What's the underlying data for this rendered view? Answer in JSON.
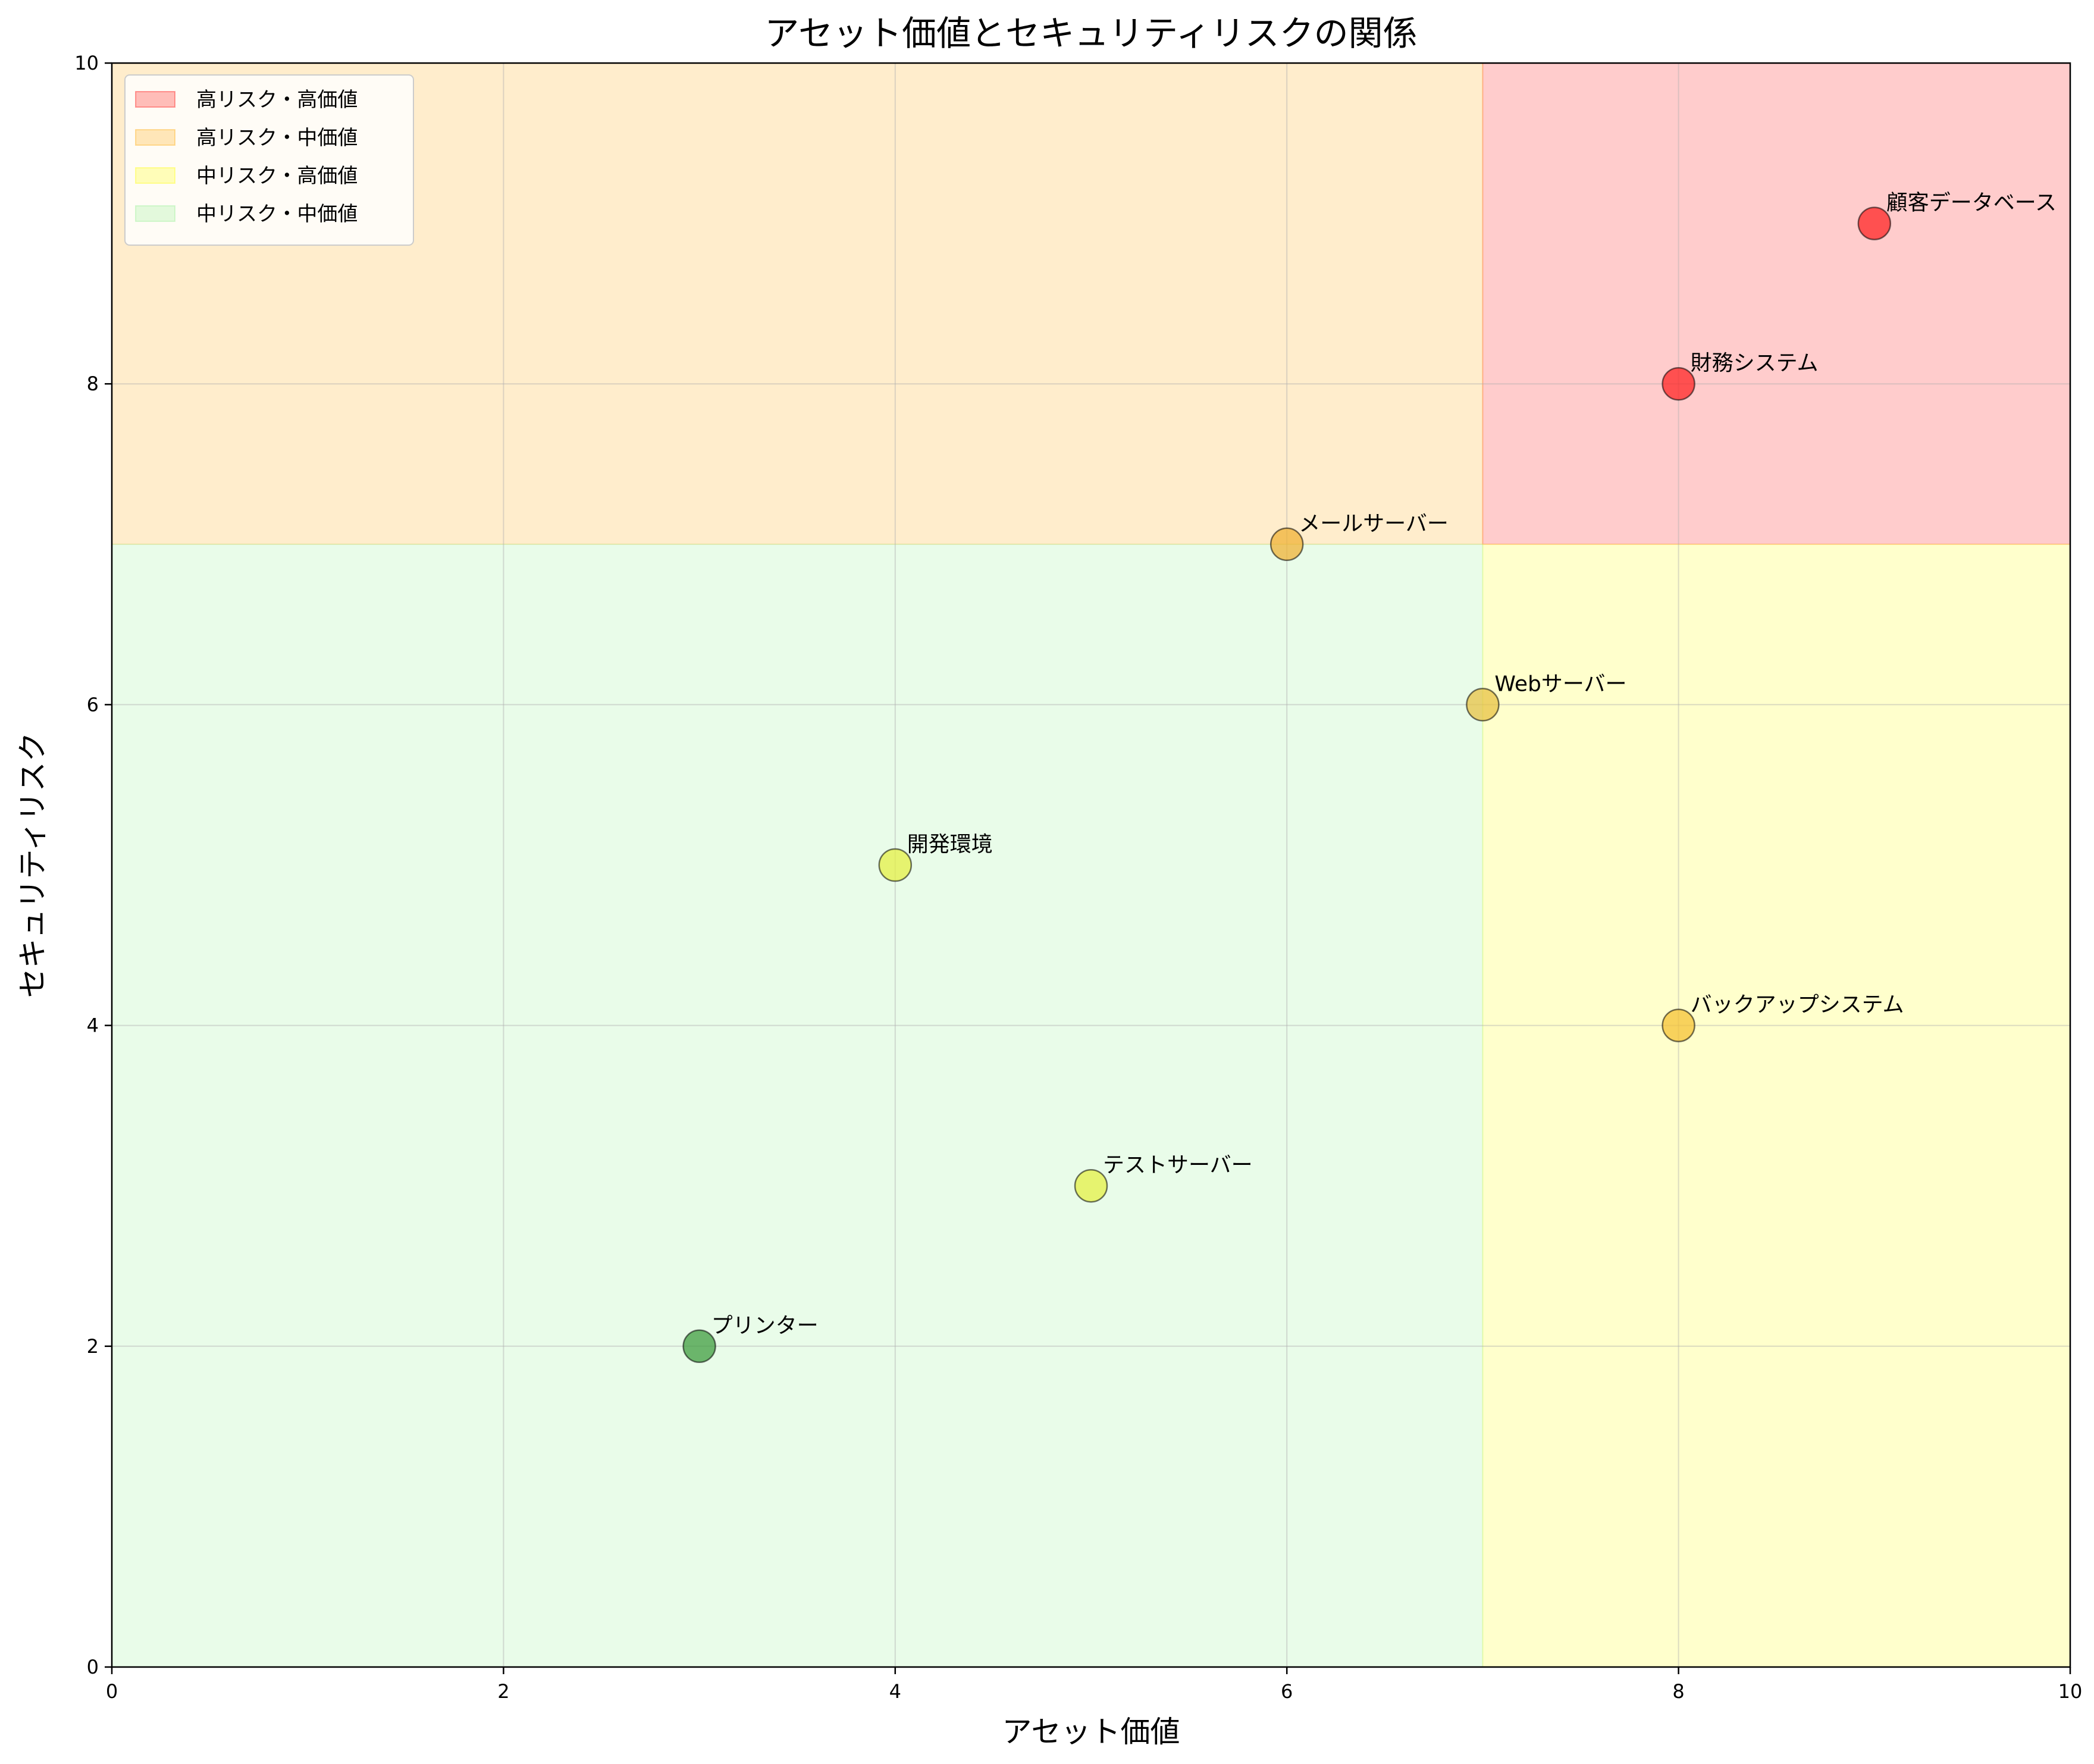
{
  "chart_data": {
    "type": "scatter",
    "title": "アセット価値とセキュリティリスクの関係",
    "xlabel": "アセット価値",
    "ylabel": "セキュリティリスク",
    "xlim": [
      0,
      10
    ],
    "ylim": [
      0,
      10
    ],
    "xticks": [
      0,
      2,
      4,
      6,
      8,
      10
    ],
    "yticks": [
      0,
      2,
      4,
      6,
      8,
      10
    ],
    "grid": true,
    "legend_position": "top-left",
    "regions": [
      {
        "name": "高リスク・高価値",
        "x_range": [
          7,
          10
        ],
        "y_range": [
          7,
          10
        ],
        "color": "#ff0000"
      },
      {
        "name": "高リスク・中価値",
        "x_range": [
          0,
          7
        ],
        "y_range": [
          7,
          10
        ],
        "color": "#ffa500"
      },
      {
        "name": "中リスク・高価値",
        "x_range": [
          7,
          10
        ],
        "y_range": [
          0,
          7
        ],
        "color": "#ffff00"
      },
      {
        "name": "中リスク・中価値",
        "x_range": [
          0,
          7
        ],
        "y_range": [
          0,
          7
        ],
        "color": "#90ee90"
      }
    ],
    "points": [
      {
        "label": "顧客データベース",
        "x": 9,
        "y": 9,
        "color": "#ff2020"
      },
      {
        "label": "財務システム",
        "x": 8,
        "y": 8,
        "color": "#ff2020"
      },
      {
        "label": "メールサーバー",
        "x": 6,
        "y": 7,
        "color": "#f0b030"
      },
      {
        "label": "Webサーバー",
        "x": 7,
        "y": 6,
        "color": "#e8c040"
      },
      {
        "label": "開発環境",
        "x": 4,
        "y": 5,
        "color": "#e4f040"
      },
      {
        "label": "バックアップシステム",
        "x": 8,
        "y": 4,
        "color": "#f5c030"
      },
      {
        "label": "テストサーバー",
        "x": 5,
        "y": 3,
        "color": "#e4f040"
      },
      {
        "label": "プリンター",
        "x": 3,
        "y": 2,
        "color": "#3a9a3a"
      }
    ]
  }
}
